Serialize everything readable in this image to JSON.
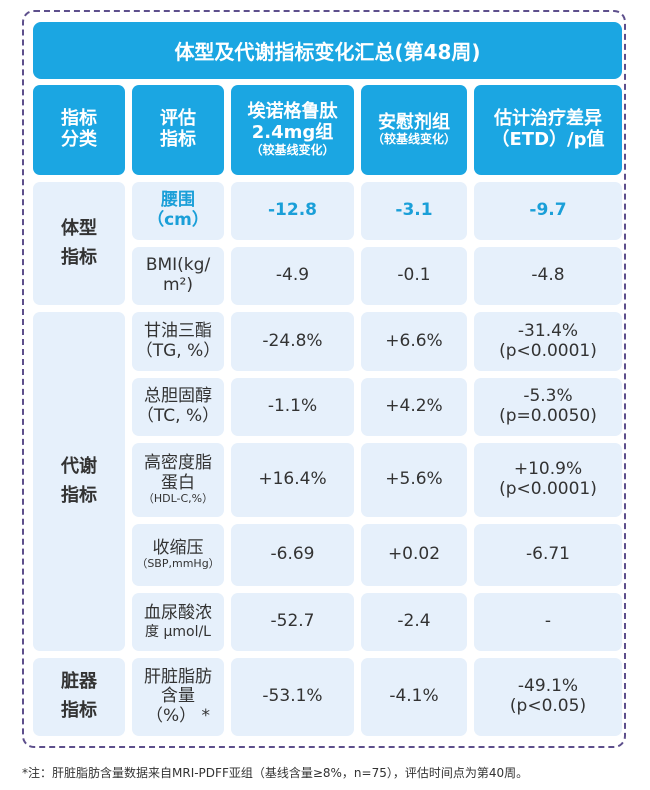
{
  "title": "体型及代谢指标变化汇总(第48周)",
  "headers": {
    "c1": [
      "指标",
      "分类"
    ],
    "c2": [
      "评估",
      "指标"
    ],
    "c3": [
      "埃诺格鲁肽",
      "2.4mg组",
      "（较基线变化）"
    ],
    "c4": [
      "安慰剂组",
      "（较基线变化）"
    ],
    "c5": [
      "估计治疗差异",
      "（ETD）/p值"
    ]
  },
  "categories": {
    "body": [
      "体型",
      "指标"
    ],
    "metabolic": [
      "代谢",
      "指标"
    ],
    "organ": [
      "脏器",
      "指标"
    ]
  },
  "rows": [
    {
      "metric": [
        "腰围",
        "（cm）"
      ],
      "drug": "-12.8",
      "placebo": "-3.1",
      "etd": [
        "-9.7"
      ]
    },
    {
      "metric": [
        "BMI(kg/",
        "m²)"
      ],
      "drug": "-4.9",
      "placebo": "-0.1",
      "etd": [
        "-4.8"
      ]
    },
    {
      "metric": [
        "甘油三酯",
        "（TG, %）"
      ],
      "drug": "-24.8%",
      "placebo": "+6.6%",
      "etd": [
        "-31.4%",
        "(p<0.0001)"
      ]
    },
    {
      "metric": [
        "总胆固醇",
        "（TC, %）"
      ],
      "drug": "-1.1%",
      "placebo": "+4.2%",
      "etd": [
        "-5.3%",
        "(p=0.0050)"
      ]
    },
    {
      "metric": [
        "高密度脂",
        "蛋白",
        "（HDL-C,%）"
      ],
      "drug": "+16.4%",
      "placebo": "+5.6%",
      "etd": [
        "+10.9%",
        "(p<0.0001)"
      ]
    },
    {
      "metric": [
        "收缩压",
        "（SBP,mmHg）"
      ],
      "drug": "-6.69",
      "placebo": "+0.02",
      "etd": [
        "-6.71"
      ]
    },
    {
      "metric": [
        "血尿酸浓",
        "度 μmol/L"
      ],
      "drug": "-52.7",
      "placebo": "-2.4",
      "etd": [
        "-"
      ]
    },
    {
      "metric": [
        "肝脏脂肪",
        "含量",
        "（%） *"
      ],
      "drug": "-53.1%",
      "placebo": "-4.1%",
      "etd": [
        "-49.1%",
        "(p<0.05)"
      ]
    }
  ],
  "footnote": "*注：肝脏脂肪含量数据来自MRI-PDFF亚组（基线含量≥8%，n=75），评估时间点为第40周。"
}
